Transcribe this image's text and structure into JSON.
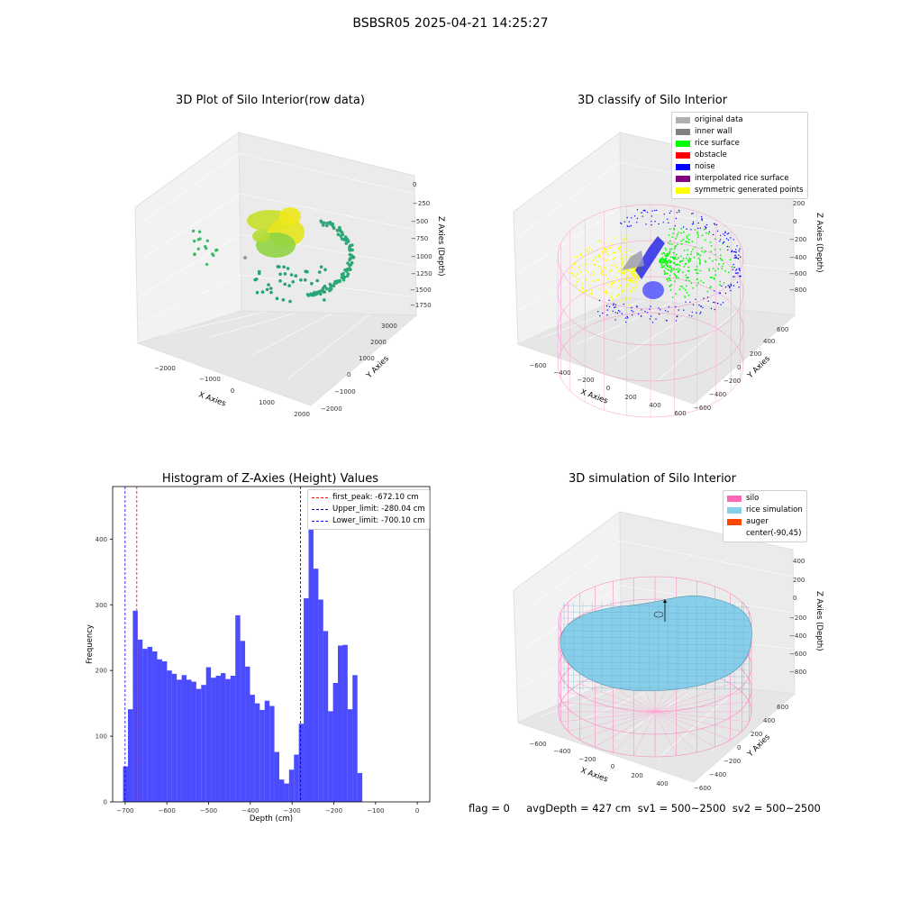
{
  "page": {
    "suptitle": "BSBSR05 2025-04-21 14:25:27"
  },
  "panel1": {
    "title": "3D Plot of Silo Interior(row data)",
    "xlabel": "X Axies",
    "ylabel": "Y Axies",
    "zlabel": "Z Axies (Depth)",
    "xticks": [
      "−2000",
      "−1000",
      "0",
      "1000",
      "2000"
    ],
    "yticks": [
      "−2000",
      "−1000",
      "0",
      "1000",
      "2000",
      "3000"
    ],
    "zticks": [
      "0",
      "−250",
      "−500",
      "−750",
      "−1000",
      "−1250",
      "−1500",
      "−1750"
    ]
  },
  "panel2": {
    "title": "3D classify of Silo Interior",
    "xlabel": "X Axies",
    "ylabel": "Y Axies",
    "zlabel": "Z Axies (Depth)",
    "xticks": [
      "−600",
      "−400",
      "−200",
      "0",
      "200",
      "400",
      "600"
    ],
    "yticks": [
      "−600",
      "−400",
      "−200",
      "0",
      "200",
      "400",
      "600"
    ],
    "zticks": [
      "200",
      "0",
      "−200",
      "−400",
      "−600",
      "−800"
    ],
    "legend": [
      {
        "label": "original data",
        "color": "#b0b0b0"
      },
      {
        "label": "inner wall",
        "color": "#808080"
      },
      {
        "label": "rice surface",
        "color": "#00ff00"
      },
      {
        "label": "obstacle",
        "color": "#ff0000"
      },
      {
        "label": "noise",
        "color": "#0000ff"
      },
      {
        "label": "interpolated rice surface",
        "color": "#800080"
      },
      {
        "label": "symmetric generated points",
        "color": "#ffff00"
      }
    ]
  },
  "panel3": {
    "title": "Histogram of Z-Axies (Height) Values",
    "legend": [
      {
        "label": "first_peak: -672.10 cm",
        "color": "#ff0000"
      },
      {
        "label": "Upper_limit: -280.04 cm",
        "color": "#00008b"
      },
      {
        "label": "Lower_limit: -700.10 cm",
        "color": "#0000ff"
      }
    ]
  },
  "panel4": {
    "title": "3D simulation of Silo Interior",
    "xlabel": "X Axies",
    "ylabel": "Y Axies",
    "zlabel": "Z Axies (Depth)",
    "xticks": [
      "−600",
      "−400",
      "−200",
      "0",
      "200",
      "400"
    ],
    "yticks": [
      "−600",
      "−400",
      "−200",
      "0",
      "200",
      "400",
      "600"
    ],
    "zticks": [
      "400",
      "200",
      "0",
      "−200",
      "−400",
      "−600",
      "−800"
    ],
    "legend": [
      {
        "label": "silo",
        "color": "#ff69b4"
      },
      {
        "label": "rice simulation",
        "color": "#87ceeb"
      },
      {
        "label": "auger",
        "color": "#ff4500"
      },
      {
        "label": "center(-90,45)",
        "color": ""
      }
    ]
  },
  "footer": {
    "text": "flag = 0     avgDepth = 427 cm  sv1 = 500~2500  sv2 = 500~2500"
  },
  "chart_data": [
    {
      "type": "bar",
      "title": "Histogram of Z-Axies (Height) Values",
      "xlabel": "Depth (cm)",
      "ylabel": "Frequency",
      "xlim": [
        -730,
        30
      ],
      "ylim": [
        0,
        480
      ],
      "xticks": [
        -700,
        -600,
        -500,
        -400,
        -300,
        -200,
        -100,
        0
      ],
      "yticks": [
        0,
        100,
        200,
        300,
        400
      ],
      "bin_width": 11.7,
      "bin_start": -705,
      "values": [
        54,
        141,
        291,
        247,
        233,
        236,
        229,
        217,
        214,
        200,
        195,
        186,
        193,
        186,
        183,
        172,
        178,
        205,
        189,
        192,
        196,
        187,
        192,
        284,
        245,
        206,
        163,
        150,
        140,
        154,
        146,
        76,
        34,
        28,
        49,
        72,
        119,
        310,
        440,
        355,
        308,
        260,
        138,
        181,
        238,
        239,
        141,
        193,
        44
      ],
      "color": "#0000ff",
      "vlines": [
        {
          "name": "first_peak: -672.10 cm",
          "x": -672.1,
          "color": "#ff0000"
        },
        {
          "name": "Upper_limit: -280.04 cm",
          "x": -280.04,
          "color": "#00008b"
        },
        {
          "name": "Lower_limit: -700.10 cm",
          "x": -700.1,
          "color": "#0000ff"
        }
      ]
    }
  ]
}
